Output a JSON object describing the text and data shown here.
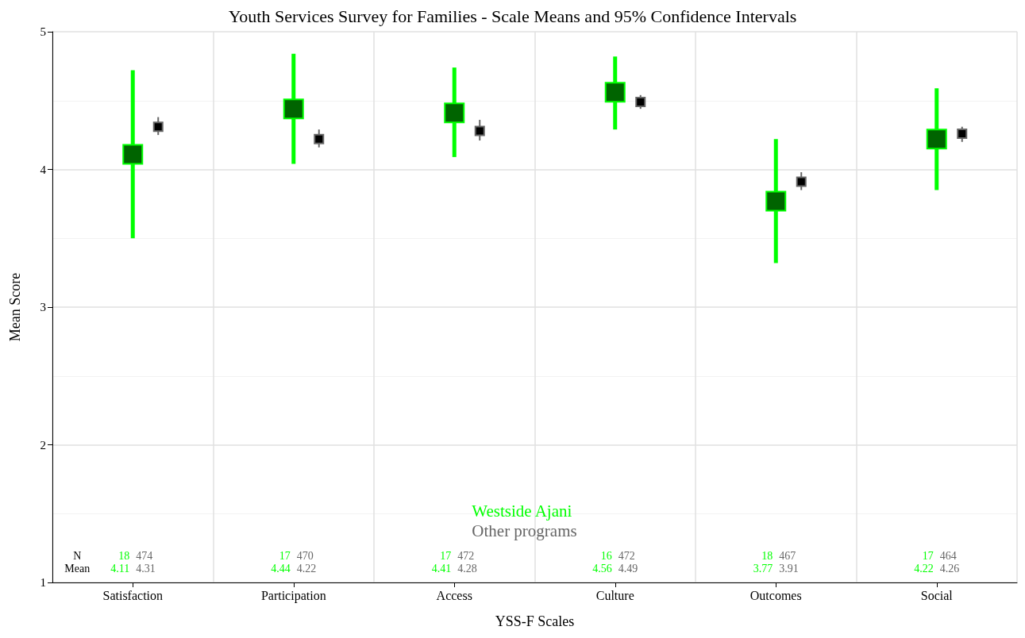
{
  "chart_data": {
    "type": "scatter",
    "title": "Youth Services Survey for Families - Scale Means and 95% Confidence Intervals",
    "xlabel": "YSS-F Scales",
    "ylabel": "Mean Score",
    "categories": [
      "Satisfaction",
      "Participation",
      "Access",
      "Culture",
      "Outcomes",
      "Social"
    ],
    "series": [
      {
        "name": "Westside Ajani",
        "color": "#00ff00",
        "values": [
          4.11,
          4.44,
          4.41,
          4.56,
          3.77,
          4.22
        ],
        "errors": [
          [
            3.5,
            4.72
          ],
          [
            4.04,
            4.84
          ],
          [
            4.09,
            4.74
          ],
          [
            4.29,
            4.82
          ],
          [
            3.32,
            4.22
          ],
          [
            3.85,
            4.59
          ]
        ]
      },
      {
        "name": "Other programs",
        "color": "#666666",
        "values": [
          4.31,
          4.22,
          4.28,
          4.49,
          3.91,
          4.26
        ],
        "errors": [
          [
            4.25,
            4.38
          ],
          [
            4.16,
            4.29
          ],
          [
            4.21,
            4.36
          ],
          [
            4.44,
            4.54
          ],
          [
            3.85,
            3.98
          ],
          [
            4.2,
            4.31
          ]
        ]
      }
    ],
    "ylim": [
      1,
      5
    ],
    "yticks": [
      1,
      2,
      3,
      4,
      5
    ],
    "grid": true,
    "legend": "bottom",
    "marker": "square",
    "annotations": [
      "N",
      "Mean",
      "18",
      "474",
      "4.11",
      "4.31",
      "17",
      "470",
      "4.44",
      "4.22",
      "17",
      "472",
      "4.41",
      "4.28",
      "16",
      "472",
      "4.56",
      "4.49",
      "18",
      "467",
      "3.77",
      "3.91",
      "17",
      "464",
      "4.22",
      "4.26"
    ]
  }
}
